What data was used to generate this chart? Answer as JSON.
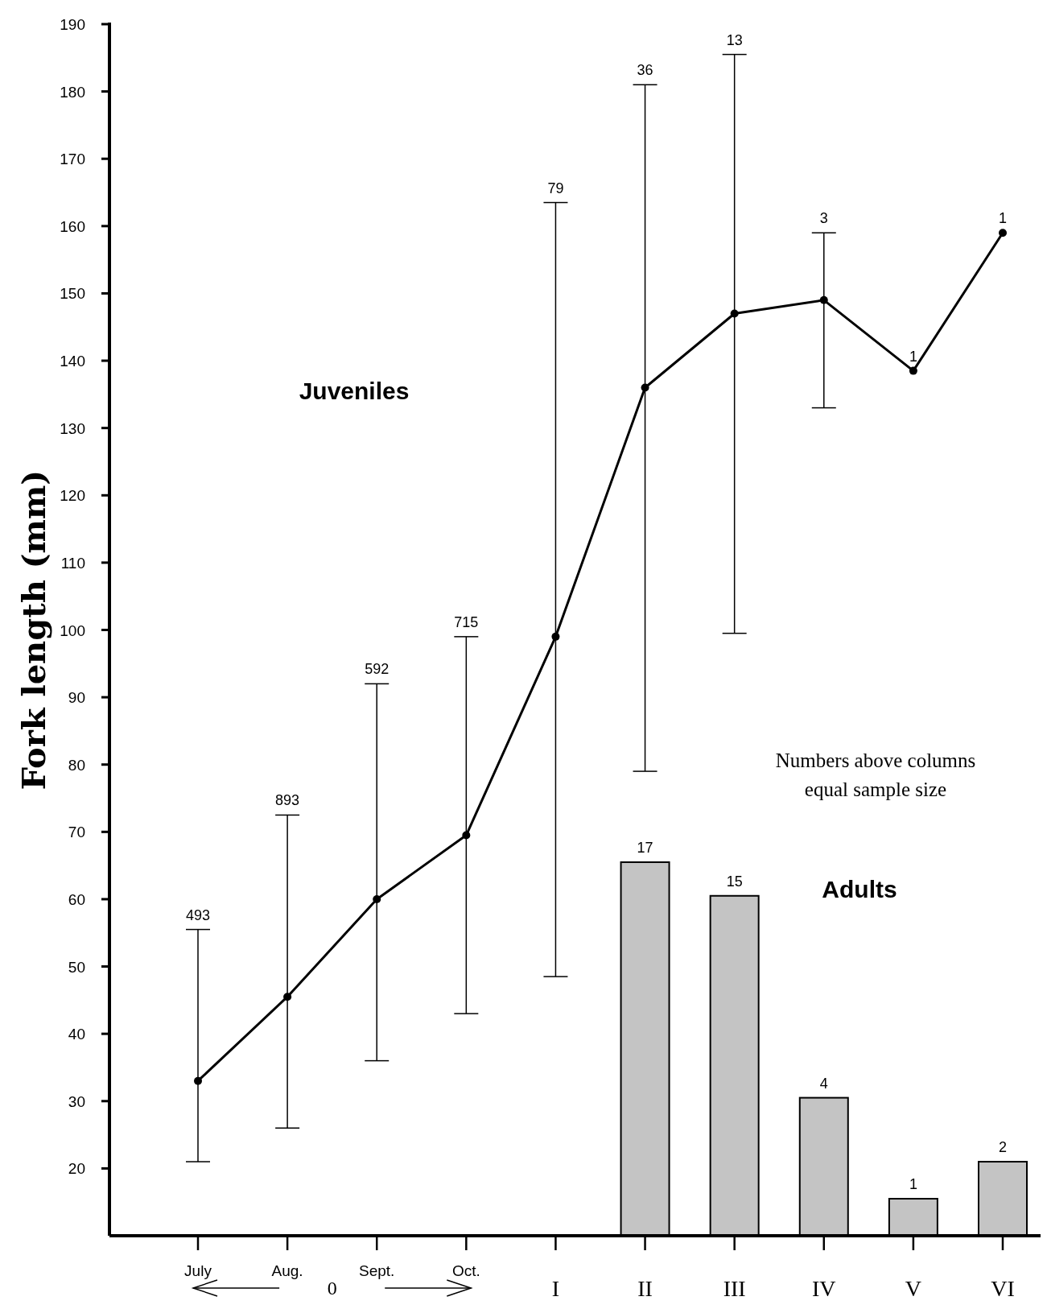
{
  "chart_data": {
    "type": "line",
    "ylabel": "Fork length (mm)",
    "categories": [
      "July",
      "Aug.",
      "Sept.",
      "Oct.",
      "I",
      "II",
      "III",
      "IV",
      "V",
      "VI"
    ],
    "ylim": [
      10,
      190
    ],
    "yticks": [
      20,
      30,
      40,
      50,
      60,
      70,
      80,
      90,
      100,
      110,
      120,
      130,
      140,
      150,
      160,
      170,
      180,
      190
    ],
    "marker": "circle",
    "line_style": "solid",
    "series": [
      {
        "type": "bar",
        "color": "#c4c4c4",
        "values": [
          null,
          null,
          null,
          null,
          null,
          65.5,
          60.5,
          30.5,
          15.5,
          21
        ]
      },
      {
        "color": "#000000",
        "values": [
          33,
          45.5,
          60,
          69.5,
          99,
          136,
          147,
          149,
          138.5,
          159
        ],
        "errors": [
          [
            21,
            55.5
          ],
          [
            26,
            72.5
          ],
          [
            36,
            92
          ],
          [
            43,
            99
          ],
          [
            48.5,
            163.5
          ],
          [
            79,
            181
          ],
          [
            99.5,
            185.5
          ],
          [
            133,
            159
          ],
          null,
          null
        ]
      }
    ],
    "annotations": [
      "Juveniles",
      "Adults",
      "Numbers above columns equal sample size",
      "0",
      {
        "text": "493",
        "x": "July",
        "y": 55.5
      },
      {
        "text": "893",
        "x": "Aug.",
        "y": 72.5
      },
      {
        "text": "592",
        "x": "Sept.",
        "y": 92
      },
      {
        "text": "715",
        "x": "Oct.",
        "y": 99
      },
      {
        "text": "79",
        "x": "I",
        "y": 163.5
      },
      {
        "text": "36",
        "x": "II",
        "y": 181
      },
      {
        "text": "13",
        "x": "III",
        "y": 185.5
      },
      {
        "text": "3",
        "x": "IV",
        "y": 159
      },
      {
        "text": "1",
        "x": "V",
        "y": 138.5
      },
      {
        "text": "1",
        "x": "VI",
        "y": 159
      },
      {
        "text": "17",
        "x": "II",
        "y": 65.5
      },
      {
        "text": "15",
        "x": "III",
        "y": 60.5
      },
      {
        "text": "4",
        "x": "IV",
        "y": 30.5
      },
      {
        "text": "1",
        "x": "V",
        "y": 15.5
      },
      {
        "text": "2",
        "x": "VI",
        "y": 21
      }
    ]
  }
}
